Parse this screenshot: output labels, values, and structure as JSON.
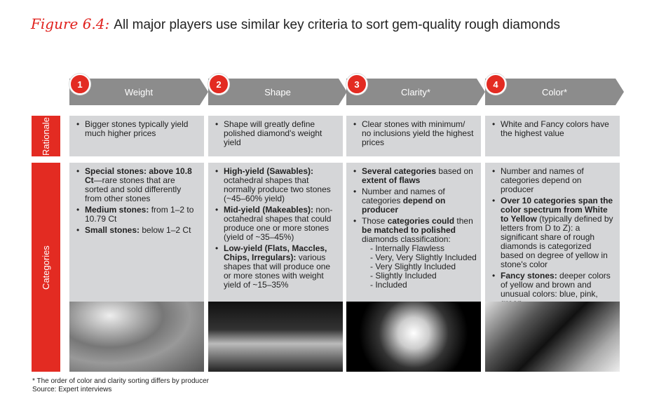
{
  "title": {
    "figure": "Figure 6.4:",
    "text": "All major players use similar key criteria to sort gem-quality rough diamonds"
  },
  "rows": {
    "rationale": "Rationale",
    "categories": "Categories"
  },
  "colors": {
    "accent": "#e32b22",
    "header": "#8c8c8c",
    "box": "#d5d6d8"
  },
  "columns": [
    {
      "num": "1",
      "label": "Weight",
      "rationale": "Bigger stones typically yield much higher prices",
      "items": [
        [
          {
            "b": true,
            "t": "Special stones: above 10.8 Ct"
          },
          {
            "t": "—rare stones that are sorted and sold differently from other stones"
          }
        ],
        [
          {
            "b": true,
            "t": "Medium stones: "
          },
          {
            "t": "from 1–2 to 10.79 Ct"
          }
        ],
        [
          {
            "b": true,
            "t": "Small stones: "
          },
          {
            "t": "below 1–2 Ct"
          }
        ]
      ],
      "sub": [],
      "after": [],
      "image": "pile of small rough diamonds in a dish"
    },
    {
      "num": "2",
      "label": "Shape",
      "rationale": "Shape will greatly define polished diamond's weight yield",
      "items": [
        [
          {
            "b": true,
            "t": "High-yield (Sawables): "
          },
          {
            "t": "octahedral shapes that normally produce two stones (~45–60% yield)"
          }
        ],
        [
          {
            "b": true,
            "t": "Mid-yield (Makeables): "
          },
          {
            "t": "non-octahedral shapes that could produce one or more stones (yield of ~35–45%)"
          }
        ],
        [
          {
            "b": true,
            "t": "Low-yield (Flats, Maccles, Chips, Irregulars): "
          },
          {
            "t": "various shapes that will produce one or more stones with weight yield of ~15–35%"
          }
        ]
      ],
      "sub": [],
      "after": [],
      "image": "row of rough diamonds"
    },
    {
      "num": "3",
      "label": "Clarity*",
      "rationale": "Clear stones with minimum/ no inclusions yield the highest prices",
      "items": [
        [
          {
            "b": true,
            "t": "Several categories"
          },
          {
            "t": " based on "
          },
          {
            "b": true,
            "t": "extent of flaws"
          }
        ],
        [
          {
            "t": "Number and names of categories "
          },
          {
            "b": true,
            "t": "depend on producer"
          }
        ],
        [
          {
            "t": "Those "
          },
          {
            "b": true,
            "t": "categories could"
          },
          {
            "t": " then "
          },
          {
            "b": true,
            "t": "be matched to polished"
          },
          {
            "t": " diamonds classification:"
          }
        ]
      ],
      "sub": [
        "- Internally Flawless",
        "- Very, Very Slightly Included",
        "- Very Slightly Included",
        "- Slightly Included",
        "- Included"
      ],
      "after": [],
      "image": "single clear rough diamond"
    },
    {
      "num": "4",
      "label": "Color*",
      "rationale": "White and Fancy colors have the highest value",
      "items": [
        [
          {
            "t": "Number and names of categories depend on producer"
          }
        ],
        [
          {
            "b": true,
            "t": "Over 10 categories span the color spectrum from White to Yellow"
          },
          {
            "t": " (typically defined by letters from D to Z): a significant share of rough diamonds is categorized based on degree of yellow in stone's color"
          }
        ],
        [
          {
            "b": true,
            "t": "Fancy stones:"
          },
          {
            "t": " deeper colors of yellow and brown and unusual colors: blue, pink, green"
          }
        ]
      ],
      "sub": [],
      "after": [],
      "image": "colored rough diamonds"
    }
  ],
  "footnote": "* The order of color and clarity sorting differs by producer",
  "source": "Source:  Expert interviews"
}
